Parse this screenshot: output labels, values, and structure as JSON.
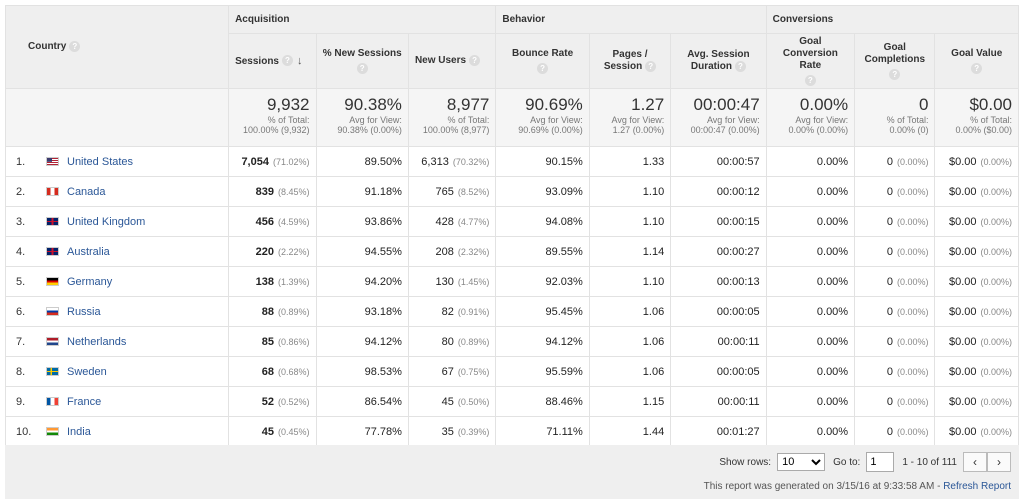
{
  "header": {
    "country": "Country",
    "groups": {
      "acquisition": "Acquisition",
      "behavior": "Behavior",
      "conversions": "Conversions"
    },
    "cols": {
      "sessions": "Sessions",
      "new_sessions": "% New Sessions",
      "new_users": "New Users",
      "bounce_rate": "Bounce Rate",
      "pages_line1": "Pages /",
      "pages_line2": "Session",
      "duration_line1": "Avg. Session",
      "duration_line2": "Duration",
      "goal_conv_line1": "Goal",
      "goal_conv_line2": "Conversion Rate",
      "goal_comp_line1": "Goal",
      "goal_comp_line2": "Completions",
      "goal_value": "Goal Value"
    },
    "help_glyph": "?",
    "sort_glyph": "↓"
  },
  "totals": {
    "sessions": {
      "big": "9,932",
      "l1": "% of Total:",
      "l2": "100.00% (9,932)"
    },
    "new_sessions": {
      "big": "90.38%",
      "l1": "Avg for View:",
      "l2": "90.38% (0.00%)"
    },
    "new_users": {
      "big": "8,977",
      "l1": "% of Total:",
      "l2": "100.00% (8,977)"
    },
    "bounce_rate": {
      "big": "90.69%",
      "l1": "Avg for View:",
      "l2": "90.69% (0.00%)"
    },
    "pages": {
      "big": "1.27",
      "l1": "Avg for View:",
      "l2": "1.27 (0.00%)"
    },
    "duration": {
      "big": "00:00:47",
      "l1": "Avg for View:",
      "l2": "00:00:47 (0.00%)"
    },
    "goal_conv": {
      "big": "0.00%",
      "l1": "Avg for View:",
      "l2": "0.00% (0.00%)"
    },
    "goal_comp": {
      "big": "0",
      "l1": "% of Total:",
      "l2": "0.00% (0)"
    },
    "goal_value": {
      "big": "$0.00",
      "l1": "% of Total:",
      "l2": "0.00% ($0.00)"
    }
  },
  "rows": [
    {
      "idx": "1.",
      "country": "United States",
      "flag": "us-flag-icon",
      "colors": [
        "#b22234",
        "#ffffff",
        "#3c3b6e"
      ],
      "sessions": "7,054",
      "sessions_pct": "(71.02%)",
      "new_sessions": "89.50%",
      "new_users": "6,313",
      "new_users_pct": "(70.32%)",
      "bounce": "90.15%",
      "pages": "1.33",
      "duration": "00:00:57",
      "goal_conv": "0.00%",
      "goal_comp": "0",
      "goal_comp_pct": "(0.00%)",
      "goal_value": "$0.00",
      "goal_value_pct": "(0.00%)"
    },
    {
      "idx": "2.",
      "country": "Canada",
      "flag": "canada-flag-icon",
      "colors": [
        "#d52b1e",
        "#ffffff",
        "#d52b1e"
      ],
      "sessions": "839",
      "sessions_pct": "(8.45%)",
      "new_sessions": "91.18%",
      "new_users": "765",
      "new_users_pct": "(8.52%)",
      "bounce": "93.09%",
      "pages": "1.10",
      "duration": "00:00:12",
      "goal_conv": "0.00%",
      "goal_comp": "0",
      "goal_comp_pct": "(0.00%)",
      "goal_value": "$0.00",
      "goal_value_pct": "(0.00%)"
    },
    {
      "idx": "3.",
      "country": "United Kingdom",
      "flag": "uk-flag-icon",
      "colors": [
        "#012169",
        "#ffffff",
        "#c8102e"
      ],
      "sessions": "456",
      "sessions_pct": "(4.59%)",
      "new_sessions": "93.86%",
      "new_users": "428",
      "new_users_pct": "(4.77%)",
      "bounce": "94.08%",
      "pages": "1.10",
      "duration": "00:00:15",
      "goal_conv": "0.00%",
      "goal_comp": "0",
      "goal_comp_pct": "(0.00%)",
      "goal_value": "$0.00",
      "goal_value_pct": "(0.00%)"
    },
    {
      "idx": "4.",
      "country": "Australia",
      "flag": "australia-flag-icon",
      "colors": [
        "#012169",
        "#ffffff",
        "#c8102e"
      ],
      "sessions": "220",
      "sessions_pct": "(2.22%)",
      "new_sessions": "94.55%",
      "new_users": "208",
      "new_users_pct": "(2.32%)",
      "bounce": "89.55%",
      "pages": "1.14",
      "duration": "00:00:27",
      "goal_conv": "0.00%",
      "goal_comp": "0",
      "goal_comp_pct": "(0.00%)",
      "goal_value": "$0.00",
      "goal_value_pct": "(0.00%)"
    },
    {
      "idx": "5.",
      "country": "Germany",
      "flag": "germany-flag-icon",
      "colors": [
        "#000000",
        "#dd0000",
        "#ffce00"
      ],
      "sessions": "138",
      "sessions_pct": "(1.39%)",
      "new_sessions": "94.20%",
      "new_users": "130",
      "new_users_pct": "(1.45%)",
      "bounce": "92.03%",
      "pages": "1.10",
      "duration": "00:00:13",
      "goal_conv": "0.00%",
      "goal_comp": "0",
      "goal_comp_pct": "(0.00%)",
      "goal_value": "$0.00",
      "goal_value_pct": "(0.00%)"
    },
    {
      "idx": "6.",
      "country": "Russia",
      "flag": "russia-flag-icon",
      "colors": [
        "#ffffff",
        "#0039a6",
        "#d52b1e"
      ],
      "sessions": "88",
      "sessions_pct": "(0.89%)",
      "new_sessions": "93.18%",
      "new_users": "82",
      "new_users_pct": "(0.91%)",
      "bounce": "95.45%",
      "pages": "1.06",
      "duration": "00:00:05",
      "goal_conv": "0.00%",
      "goal_comp": "0",
      "goal_comp_pct": "(0.00%)",
      "goal_value": "$0.00",
      "goal_value_pct": "(0.00%)"
    },
    {
      "idx": "7.",
      "country": "Netherlands",
      "flag": "netherlands-flag-icon",
      "colors": [
        "#ae1c28",
        "#ffffff",
        "#21468b"
      ],
      "sessions": "85",
      "sessions_pct": "(0.86%)",
      "new_sessions": "94.12%",
      "new_users": "80",
      "new_users_pct": "(0.89%)",
      "bounce": "94.12%",
      "pages": "1.06",
      "duration": "00:00:11",
      "goal_conv": "0.00%",
      "goal_comp": "0",
      "goal_comp_pct": "(0.00%)",
      "goal_value": "$0.00",
      "goal_value_pct": "(0.00%)"
    },
    {
      "idx": "8.",
      "country": "Sweden",
      "flag": "sweden-flag-icon",
      "colors": [
        "#006aa7",
        "#fecc00",
        "#006aa7"
      ],
      "sessions": "68",
      "sessions_pct": "(0.68%)",
      "new_sessions": "98.53%",
      "new_users": "67",
      "new_users_pct": "(0.75%)",
      "bounce": "95.59%",
      "pages": "1.06",
      "duration": "00:00:05",
      "goal_conv": "0.00%",
      "goal_comp": "0",
      "goal_comp_pct": "(0.00%)",
      "goal_value": "$0.00",
      "goal_value_pct": "(0.00%)"
    },
    {
      "idx": "9.",
      "country": "France",
      "flag": "france-flag-icon",
      "colors": [
        "#0055a4",
        "#ffffff",
        "#ef4135"
      ],
      "sessions": "52",
      "sessions_pct": "(0.52%)",
      "new_sessions": "86.54%",
      "new_users": "45",
      "new_users_pct": "(0.50%)",
      "bounce": "88.46%",
      "pages": "1.15",
      "duration": "00:00:11",
      "goal_conv": "0.00%",
      "goal_comp": "0",
      "goal_comp_pct": "(0.00%)",
      "goal_value": "$0.00",
      "goal_value_pct": "(0.00%)"
    },
    {
      "idx": "10.",
      "country": "India",
      "flag": "india-flag-icon",
      "colors": [
        "#ff9933",
        "#ffffff",
        "#138808"
      ],
      "sessions": "45",
      "sessions_pct": "(0.45%)",
      "new_sessions": "77.78%",
      "new_users": "35",
      "new_users_pct": "(0.39%)",
      "bounce": "71.11%",
      "pages": "1.44",
      "duration": "00:01:27",
      "goal_conv": "0.00%",
      "goal_comp": "0",
      "goal_comp_pct": "(0.00%)",
      "goal_value": "$0.00",
      "goal_value_pct": "(0.00%)"
    }
  ],
  "footer": {
    "show_rows_label": "Show rows:",
    "show_rows_value": "10",
    "goto_label": "Go to:",
    "goto_value": "1",
    "range_text": "1 - 10 of 111",
    "prev_glyph": "‹",
    "next_glyph": "›",
    "generated_text": "This report was generated on 3/15/16 at 9:33:58 AM - ",
    "refresh_label": "Refresh Report"
  }
}
